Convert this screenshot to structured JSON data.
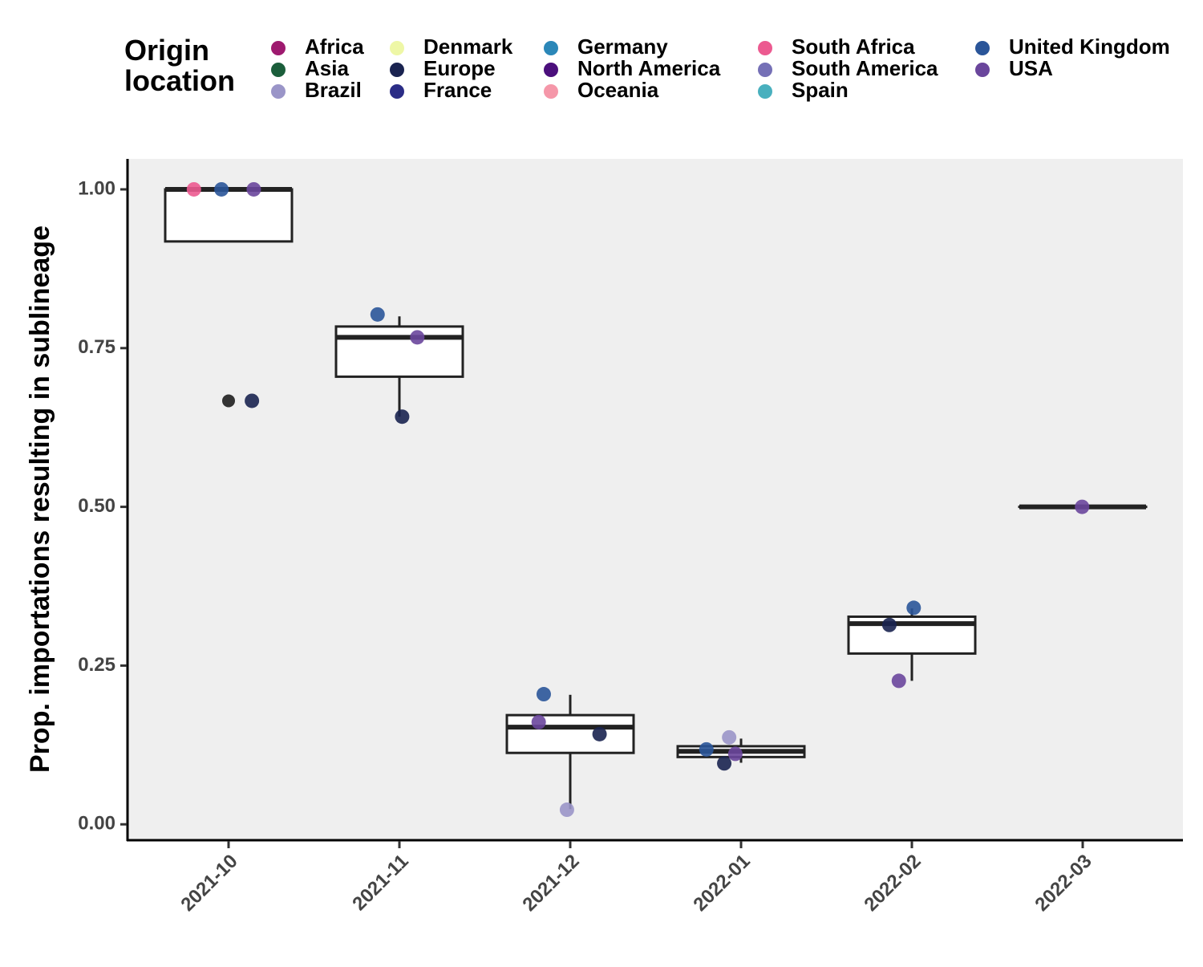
{
  "chart_data": {
    "type": "box",
    "categories": [
      "2021-10",
      "2021-11",
      "2021-12",
      "2022-01",
      "2022-02",
      "2022-03"
    ],
    "ylabel": "Prop. importations resulting in sublineage",
    "ylim": [
      -0.025,
      1.048
    ],
    "yticks": [
      {
        "value": 0,
        "label": "0.00"
      },
      {
        "value": 0.25,
        "label": "0.25"
      },
      {
        "value": 0.5,
        "label": "0.50"
      },
      {
        "value": 0.75,
        "label": "0.75"
      },
      {
        "value": 1,
        "label": "1.00"
      }
    ],
    "legend_title": "Origin location",
    "boxes": [
      {
        "lower": 0.918,
        "q1": 0.918,
        "median": 1.0,
        "q3": 1.0,
        "upper": 1.0,
        "outliers": [
          0.667
        ]
      },
      {
        "lower": 0.642,
        "q1": 0.705,
        "median": 0.767,
        "q3": 0.784,
        "upper": 0.8,
        "outliers": []
      },
      {
        "lower": 0.024,
        "q1": 0.1125,
        "median": 0.153,
        "q3": 0.172,
        "upper": 0.204,
        "outliers": []
      },
      {
        "lower": 0.097,
        "q1": 0.106,
        "median": 0.115,
        "q3": 0.123,
        "upper": 0.135,
        "outliers": []
      },
      {
        "lower": 0.226,
        "q1": 0.269,
        "median": 0.316,
        "q3": 0.327,
        "upper": 0.34,
        "outliers": []
      },
      {
        "lower": 0.5,
        "q1": 0.5,
        "median": 0.5,
        "q3": 0.5,
        "upper": 0.5,
        "outliers": []
      }
    ],
    "series": [
      {
        "name": "Africa",
        "color": "#9e1a6f",
        "x": [],
        "values": []
      },
      {
        "name": "Asia",
        "color": "#1b5e3b",
        "x": [],
        "values": []
      },
      {
        "name": "Brazil",
        "color": "#9a95c8",
        "x": [
          "2021-12",
          "2022-01"
        ],
        "values": [
          0.023,
          0.137
        ]
      },
      {
        "name": "Denmark",
        "color": "#eef7a6",
        "x": [],
        "values": []
      },
      {
        "name": "Europe",
        "color": "#1a2350",
        "x": [
          "2021-10",
          "2021-11",
          "2021-12",
          "2022-01",
          "2022-02"
        ],
        "values": [
          0.667,
          0.642,
          0.142,
          0.096,
          0.314
        ]
      },
      {
        "name": "France",
        "color": "#2b2d86",
        "x": [],
        "values": []
      },
      {
        "name": "Germany",
        "color": "#2b87b8",
        "x": [],
        "values": []
      },
      {
        "name": "North America",
        "color": "#4b0f7c",
        "x": [],
        "values": []
      },
      {
        "name": "Oceania",
        "color": "#f597a9",
        "x": [],
        "values": []
      },
      {
        "name": "South Africa",
        "color": "#ec5a90",
        "x": [
          "2021-10"
        ],
        "values": [
          1.0
        ]
      },
      {
        "name": "South America",
        "color": "#7570b6",
        "x": [],
        "values": []
      },
      {
        "name": "Spain",
        "color": "#49b0be",
        "x": [],
        "values": []
      },
      {
        "name": "United Kingdom",
        "color": "#2a5599",
        "x": [
          "2021-10",
          "2021-11",
          "2021-12",
          "2022-01",
          "2022-02"
        ],
        "values": [
          1.0,
          0.803,
          0.205,
          0.118,
          0.341
        ]
      },
      {
        "name": "USA",
        "color": "#6a469c",
        "x": [
          "2021-10",
          "2021-11",
          "2021-12",
          "2022-01",
          "2022-02",
          "2022-03"
        ],
        "values": [
          1.0,
          0.767,
          0.161,
          0.111,
          0.226,
          0.5
        ]
      }
    ]
  }
}
